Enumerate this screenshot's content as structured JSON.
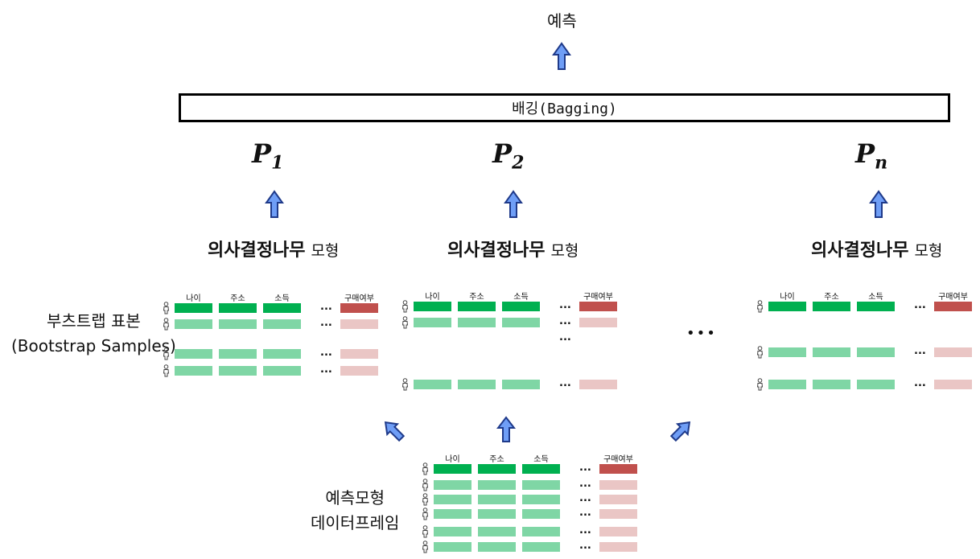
{
  "prediction_label": "예측",
  "bagging_label": "배깅(Bagging)",
  "models": [
    {
      "p_symbol": "P",
      "p_subscript": "1",
      "name_bold": "의사결정나무",
      "name_suffix": "모형"
    },
    {
      "p_symbol": "P",
      "p_subscript": "2",
      "name_bold": "의사결정나무",
      "name_suffix": "모형"
    },
    {
      "p_symbol": "P",
      "p_subscript": "n",
      "name_bold": "의사결정나무",
      "name_suffix": "모형"
    }
  ],
  "bootstrap_label_line1": "부츠트랩 표본",
  "bootstrap_label_line2": "(Bootstrap Samples)",
  "dataframe_label_line1": "예측모형",
  "dataframe_label_line2": "데이터프레임",
  "table_headers": [
    "나이",
    "주소",
    "소득",
    "구매여부"
  ],
  "ellipsis": "...",
  "big_ellipsis": "•••",
  "colors": {
    "header_green": "#00b050",
    "row_green": "#7fd6a5",
    "header_red": "#c0504d",
    "row_red": "#eac6c5",
    "arrow_blue": "#6f9ef6"
  }
}
